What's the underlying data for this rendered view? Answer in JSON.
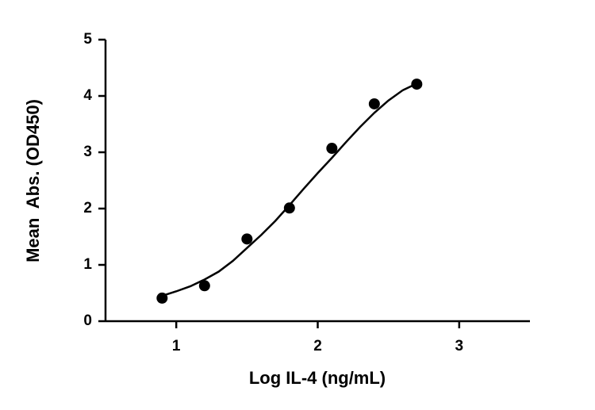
{
  "chart_data": {
    "type": "scatter",
    "x_label": "Log IL-4 (ng/mL)",
    "y_label": "Mean  Abs. (OD450)",
    "xlim": [
      0.5,
      3.5
    ],
    "xticks": [
      1,
      2,
      3
    ],
    "ylim": [
      0,
      5
    ],
    "yticks": [
      0,
      1,
      2,
      3,
      4,
      5
    ],
    "grid": false,
    "series": [
      {
        "mode": "markers",
        "color": "#000000",
        "x": [
          0.9,
          1.2,
          1.5,
          1.8,
          2.1,
          2.4,
          2.7
        ],
        "values": [
          0.41,
          0.63,
          1.46,
          2.01,
          3.07,
          3.86,
          4.21
        ]
      },
      {
        "mode": "line",
        "color": "#000000",
        "x": [
          0.9,
          1.0,
          1.1,
          1.2,
          1.3,
          1.4,
          1.5,
          1.6,
          1.7,
          1.8,
          1.9,
          2.0,
          2.1,
          2.2,
          2.3,
          2.4,
          2.5,
          2.6,
          2.7
        ],
        "values": [
          0.45,
          0.53,
          0.62,
          0.74,
          0.88,
          1.07,
          1.3,
          1.53,
          1.78,
          2.06,
          2.35,
          2.63,
          2.9,
          3.18,
          3.45,
          3.7,
          3.92,
          4.1,
          4.22
        ]
      }
    ]
  }
}
